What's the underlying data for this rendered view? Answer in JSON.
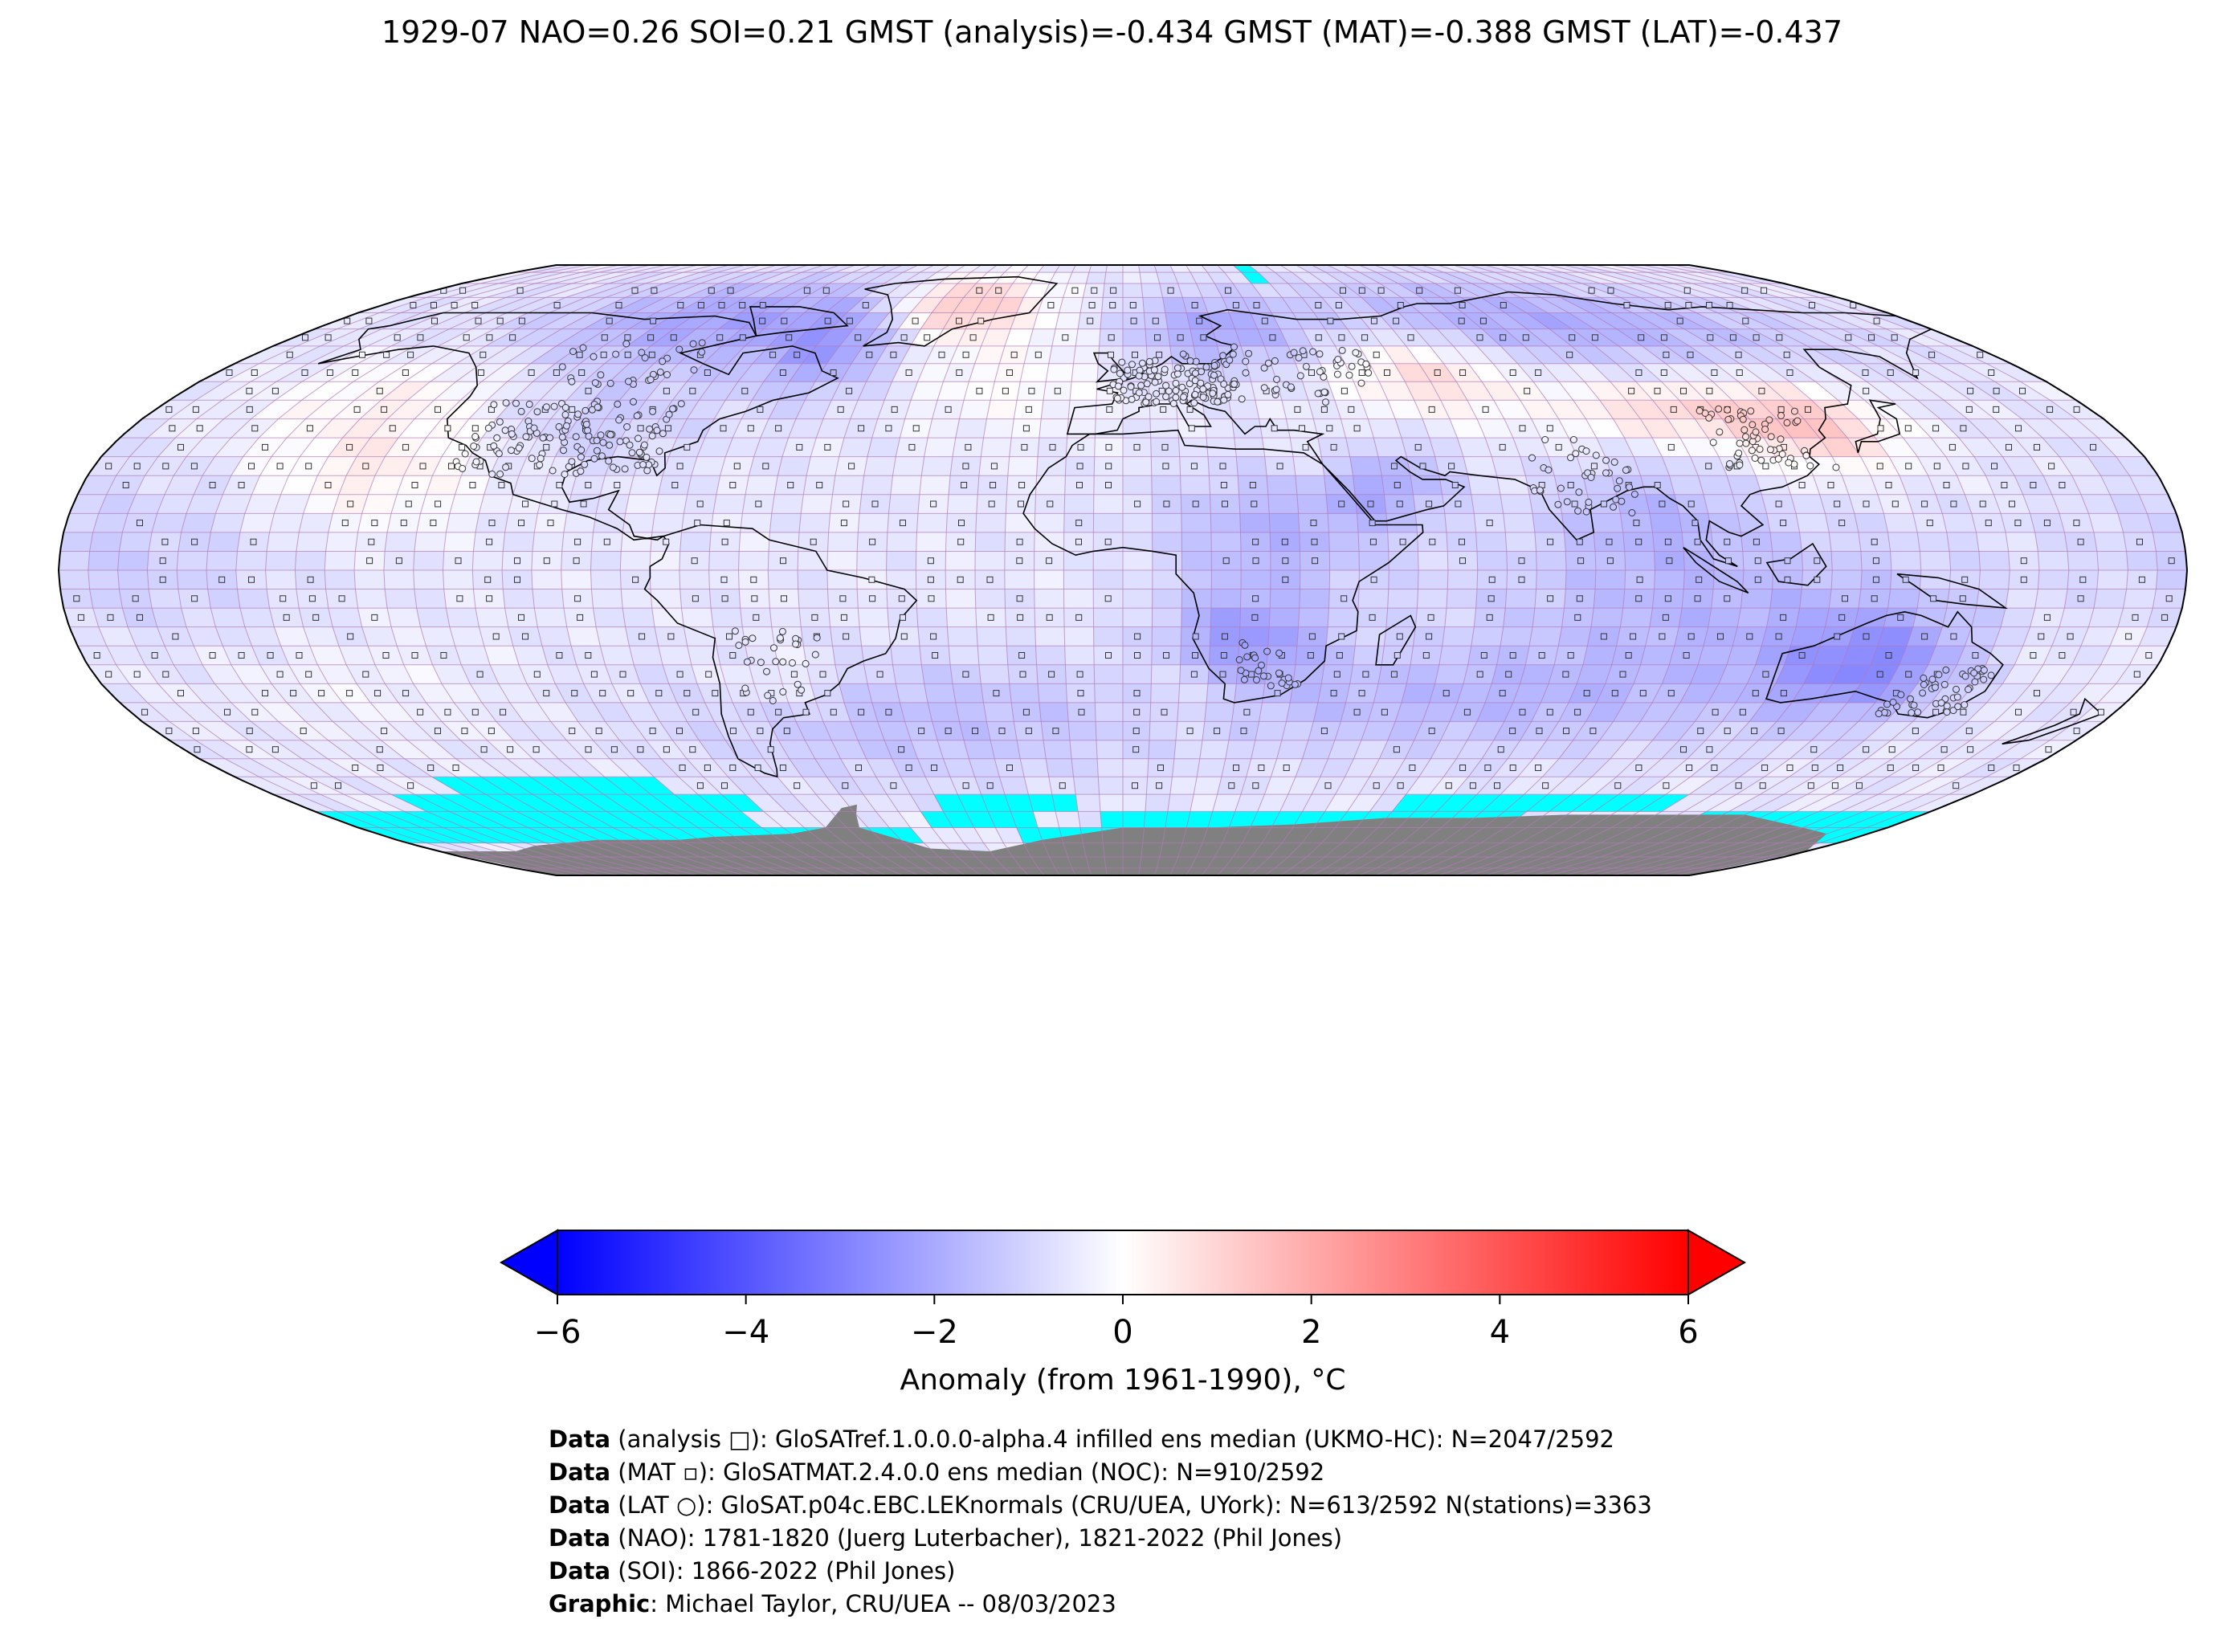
{
  "title": "1929-07 NAO=0.26 SOI=0.21 GMST (analysis)=-0.434 GMST (MAT)=-0.388 GMST (LAT)=-0.437",
  "map": {
    "projection": "Robinson",
    "grid": "5° lat × 5° lon cells (2592 total)",
    "colors": {
      "missing_sea_ice": "#00ffff",
      "land_mask_antarctica": "#808080",
      "gridline": "#b07ab8",
      "coast": "#000000"
    },
    "markers": {
      "analysis": "square",
      "mat": "small square",
      "lat": "circle"
    }
  },
  "colorbar": {
    "min": -6,
    "max": 6,
    "ticks": [
      "−6",
      "−4",
      "−2",
      "0",
      "2",
      "4",
      "6"
    ],
    "colors": [
      "#0000ff",
      "#ffffff",
      "#ff0000"
    ],
    "extend": "both",
    "label": "Anomaly (from 1961-1990), °C"
  },
  "credits": [
    {
      "bold": "Data",
      "text": " (analysis □): GloSATref.1.0.0.0-alpha.4 infilled ens median (UKMO-HC): N=2047/2592"
    },
    {
      "bold": "Data",
      "text": " (MAT ▫): GloSATMAT.2.4.0.0 ens median (NOC): N=910/2592"
    },
    {
      "bold": "Data",
      "text": " (LAT ○): GloSAT.p04c.EBC.LEKnormals (CRU/UEA, UYork): N=613/2592 N(stations)=3363"
    },
    {
      "bold": "Data",
      "text": " (NAO): 1781-1820 (Juerg Luterbacher), 1821-2022 (Phil Jones)"
    },
    {
      "bold": "Data",
      "text": " (SOI): 1866-2022 (Phil Jones)"
    },
    {
      "bold": "Graphic",
      "text": ": Michael Taylor, CRU/UEA -- 08/03/2023"
    }
  ]
}
